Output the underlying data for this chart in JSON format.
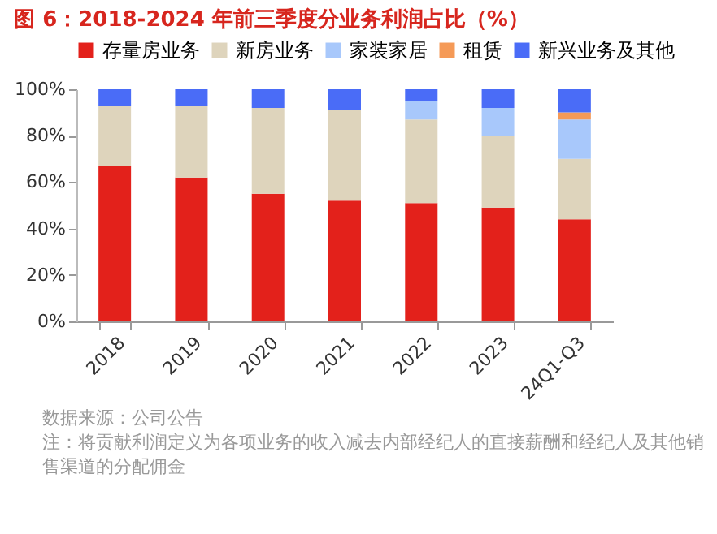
{
  "chart_data": {
    "type": "bar",
    "title": "图 6：2018-2024 年前三季度分业务利润占比（%）",
    "stacked": true,
    "legend": "top",
    "grid": false,
    "categories": [
      "2018",
      "2019",
      "2020",
      "2021",
      "2022",
      "2023",
      "24Q1-Q3"
    ],
    "series": [
      {
        "name": "存量房业务",
        "color": "#e3211b",
        "values": [
          67,
          62,
          55,
          52,
          51,
          49,
          44
        ]
      },
      {
        "name": "新房业务",
        "color": "#ded4bc",
        "values": [
          26,
          31,
          37,
          39,
          36,
          31,
          26
        ]
      },
      {
        "name": "家装家居",
        "color": "#a8c8fb",
        "values": [
          0,
          0,
          0,
          0,
          8,
          12,
          17
        ]
      },
      {
        "name": "租赁",
        "color": "#f59a57",
        "values": [
          0,
          0,
          0,
          0,
          0,
          0,
          3
        ]
      },
      {
        "name": "新兴业务及其他",
        "color": "#4a6cf7",
        "values": [
          7,
          7,
          8,
          9,
          5,
          8,
          10
        ]
      }
    ],
    "ylim": [
      0,
      100
    ],
    "yticks": [
      {
        "value": 0,
        "label": "0%"
      },
      {
        "value": 20,
        "label": "20%"
      },
      {
        "value": 40,
        "label": "40%"
      },
      {
        "value": 60,
        "label": "60%"
      },
      {
        "value": 80,
        "label": "80%"
      },
      {
        "value": 100,
        "label": "100%"
      }
    ],
    "annotations": [
      "数据来源：公司公告",
      "注：将贡献利润定义为各项业务的收入减去内部经纪人的直接薪酬和经纪人及其他销售渠道的分配佣金"
    ]
  }
}
